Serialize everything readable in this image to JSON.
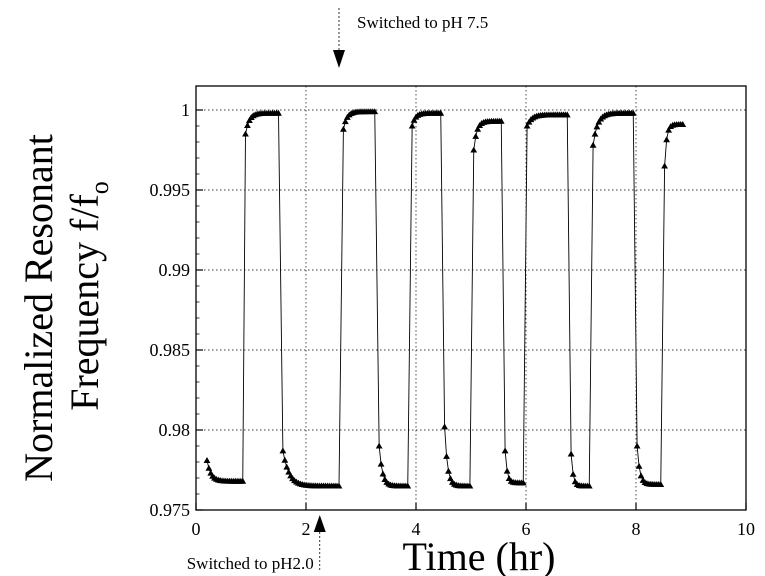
{
  "chart_data": {
    "type": "scatter",
    "title": "",
    "xlabel": "Time (hr)",
    "ylabel_line1": "Normalized Resonant",
    "ylabel_line2_main": "Frequency f/f",
    "ylabel_line2_sub": "o",
    "xlim": [
      0,
      10
    ],
    "ylim": [
      0.975,
      1.0015
    ],
    "xticks": [
      0,
      2,
      4,
      6,
      8,
      10
    ],
    "yticks": [
      0.975,
      0.98,
      0.985,
      0.99,
      0.995,
      1
    ],
    "ytick_labels": [
      "0.975",
      "0.98",
      "0.985",
      "0.99",
      "0.995",
      "1"
    ],
    "grid": true,
    "grid_style": "dotted",
    "marker": "filled-triangle",
    "line_color": "#000000",
    "annotations": [
      {
        "text": "Switched to pH 7.5",
        "x": 2.6,
        "direction": "down",
        "position": "top"
      },
      {
        "text": "Switched to pH2.0",
        "x": 2.25,
        "direction": "up",
        "position": "bottom"
      }
    ],
    "segments": [
      {
        "state": "low",
        "t_start": 0.2,
        "t_end": 0.85,
        "start": 0.9781,
        "end": 0.9768
      },
      {
        "state": "high",
        "t_start": 0.9,
        "t_end": 1.5,
        "start": 0.9985,
        "end": 0.9998
      },
      {
        "state": "low",
        "t_start": 1.58,
        "t_end": 2.6,
        "start": 0.9787,
        "end": 0.9765
      },
      {
        "state": "high",
        "t_start": 2.68,
        "t_end": 3.25,
        "start": 0.9988,
        "end": 0.9999
      },
      {
        "state": "low",
        "t_start": 3.33,
        "t_end": 3.85,
        "start": 0.979,
        "end": 0.9765
      },
      {
        "state": "high",
        "t_start": 3.93,
        "t_end": 4.45,
        "start": 0.999,
        "end": 0.9998
      },
      {
        "state": "low",
        "t_start": 4.52,
        "t_end": 4.98,
        "start": 0.9802,
        "end": 0.9765
      },
      {
        "state": "high",
        "t_start": 5.05,
        "t_end": 5.55,
        "start": 0.9975,
        "end": 0.9993
      },
      {
        "state": "low",
        "t_start": 5.62,
        "t_end": 5.95,
        "start": 0.9787,
        "end": 0.9767
      },
      {
        "state": "high",
        "t_start": 6.02,
        "t_end": 6.75,
        "start": 0.999,
        "end": 0.9997
      },
      {
        "state": "low",
        "t_start": 6.82,
        "t_end": 7.15,
        "start": 0.9785,
        "end": 0.9765
      },
      {
        "state": "high",
        "t_start": 7.22,
        "t_end": 7.95,
        "start": 0.9978,
        "end": 0.9998
      },
      {
        "state": "low",
        "t_start": 8.02,
        "t_end": 8.45,
        "start": 0.979,
        "end": 0.9766
      },
      {
        "state": "high",
        "t_start": 8.52,
        "t_end": 8.85,
        "start": 0.9965,
        "end": 0.9991
      }
    ]
  }
}
